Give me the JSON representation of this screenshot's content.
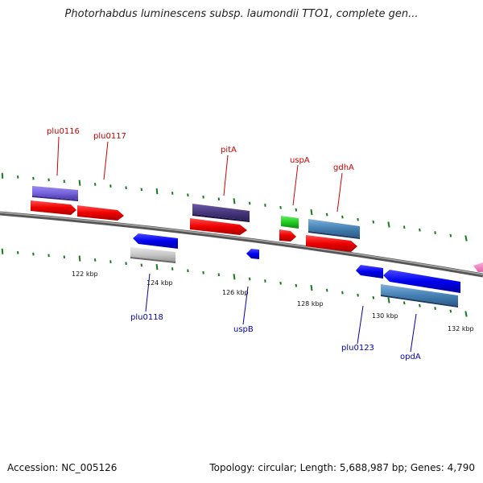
{
  "title": "Photorhabdus luminescens subsp. laumondii TTO1, complete gen...",
  "accession_text": "Accession: NC_005126",
  "stats_text": "Topology: circular; Length: 5,688,987 bp; Genes: 4,790",
  "colors": {
    "forward_label": "#cc0000",
    "reverse_label": "#0000aa",
    "tick": "#1a7a1a",
    "backbone": "#777777"
  },
  "scale_labels": [
    "122 kbp",
    "124 kbp",
    "126 kbp",
    "128 kbp",
    "130 kbp",
    "132 kbp"
  ],
  "gene_labels": {
    "plu0116": "plu0116",
    "plu0117": "plu0117",
    "pitA": "pitA",
    "uspA": "uspA",
    "gdhA": "gdhA",
    "plu0118": "plu0118",
    "uspB": "uspB",
    "plu0123": "plu0123",
    "opdA": "opdA"
  }
}
